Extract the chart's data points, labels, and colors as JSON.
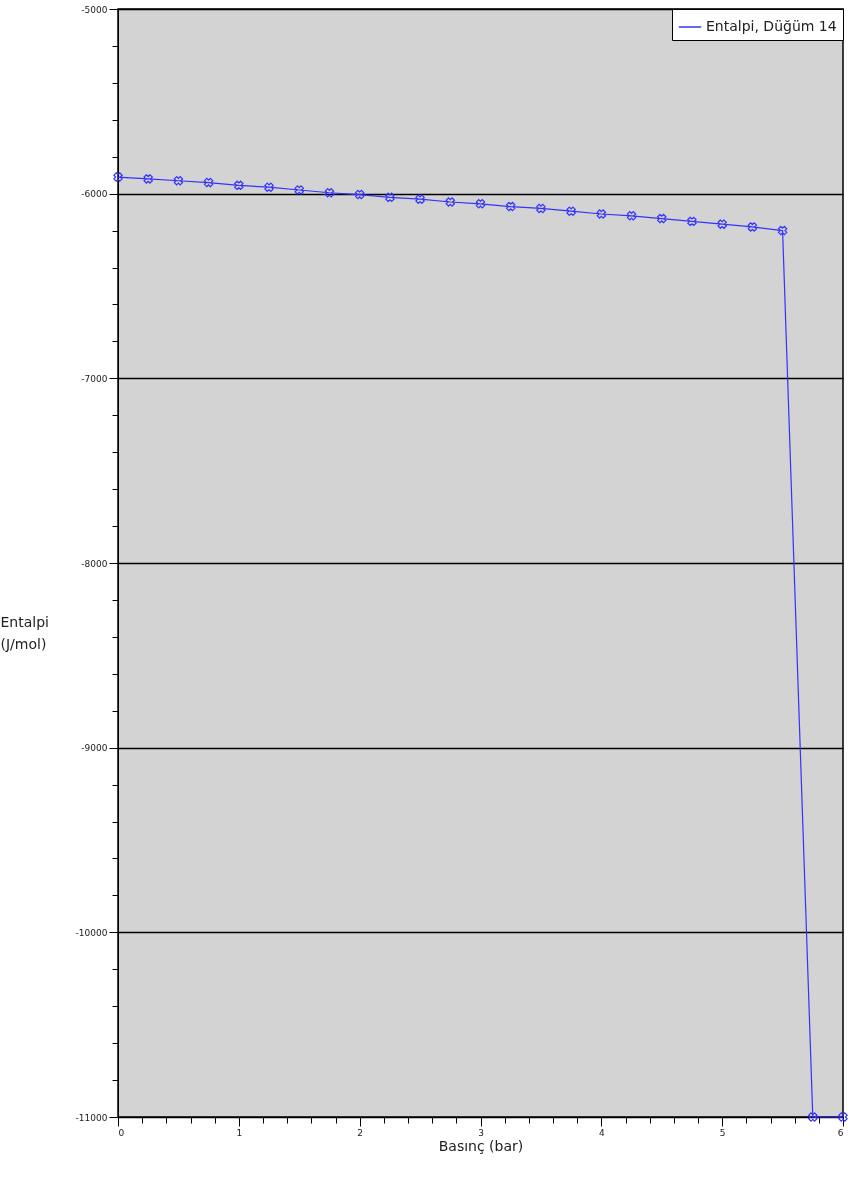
{
  "chart_data": {
    "type": "line",
    "xlabel": "Basınç (bar)",
    "ylabel": "Entalpi (J/mol)",
    "x": [
      0,
      0.25,
      0.5,
      0.75,
      1,
      1.25,
      1.5,
      1.75,
      2,
      2.25,
      2.5,
      2.75,
      3,
      3.25,
      3.5,
      3.75,
      4,
      4.25,
      4.5,
      4.75,
      5,
      5.25,
      5.5,
      5.75,
      6
    ],
    "series": [
      {
        "name": "Entalpi, Düğüm 14",
        "color": "#3333ff",
        "values": [
          -5910,
          -5920,
          -5930,
          -5940,
          -5955,
          -5965,
          -5980,
          -5995,
          -6005,
          -6020,
          -6030,
          -6045,
          -6055,
          -6070,
          -6080,
          -6095,
          -6110,
          -6120,
          -6135,
          -6150,
          -6165,
          -6180,
          -6200,
          -11000,
          -11000
        ]
      }
    ],
    "xlim": [
      0,
      6
    ],
    "ylim": [
      -11000,
      -5000
    ],
    "xticks": [
      0,
      {
        "value": 0.2,
        "label": null
      },
      {
        "value": 0.4,
        "label": null
      },
      {
        "value": 0.6,
        "label": null
      },
      {
        "value": 0.8,
        "label": null
      },
      1,
      {
        "value": 1.2,
        "label": null
      },
      {
        "value": 1.4,
        "label": null
      },
      {
        "value": 1.6,
        "label": null
      },
      {
        "value": 1.8,
        "label": null
      },
      2,
      {
        "value": 2.2,
        "label": null
      },
      {
        "value": 2.4,
        "label": null
      },
      {
        "value": 2.6,
        "label": null
      },
      {
        "value": 2.8,
        "label": null
      },
      3,
      {
        "value": 3.2,
        "label": null
      },
      {
        "value": 3.4,
        "label": null
      },
      {
        "value": 3.6,
        "label": null
      },
      {
        "value": 3.8,
        "label": null
      },
      4,
      {
        "value": 4.2,
        "label": null
      },
      {
        "value": 4.4,
        "label": null
      },
      {
        "value": 4.6,
        "label": null
      },
      {
        "value": 4.8,
        "label": null
      },
      5,
      {
        "value": 5.2,
        "label": null
      },
      {
        "value": 5.4,
        "label": null
      },
      {
        "value": 5.6,
        "label": null
      },
      {
        "value": 5.8,
        "label": null
      },
      6
    ],
    "yticks": [
      -11000,
      {
        "value": -10800,
        "label": null
      },
      {
        "value": -10600,
        "label": null
      },
      {
        "value": -10400,
        "label": null
      },
      {
        "value": -10200,
        "label": null
      },
      -10000,
      {
        "value": -9800,
        "label": null
      },
      {
        "value": -9600,
        "label": null
      },
      {
        "value": -9400,
        "label": null
      },
      {
        "value": -9200,
        "label": null
      },
      -9000,
      {
        "value": -8800,
        "label": null
      },
      {
        "value": -8600,
        "label": null
      },
      {
        "value": -8400,
        "label": null
      },
      {
        "value": -8200,
        "label": null
      },
      -8000,
      {
        "value": -7800,
        "label": null
      },
      {
        "value": -7600,
        "label": null
      },
      {
        "value": -7400,
        "label": null
      },
      {
        "value": -7200,
        "label": null
      },
      -7000,
      {
        "value": -6800,
        "label": null
      },
      {
        "value": -6600,
        "label": null
      },
      {
        "value": -6400,
        "label": null
      },
      {
        "value": -6200,
        "label": null
      },
      -6000,
      {
        "value": -5800,
        "label": null
      },
      {
        "value": -5600,
        "label": null
      },
      {
        "value": -5400,
        "label": null
      },
      {
        "value": -5200,
        "label": null
      },
      -5000
    ],
    "grid": "y",
    "legend": "top right",
    "marker": "cross",
    "line_style": "solid"
  }
}
